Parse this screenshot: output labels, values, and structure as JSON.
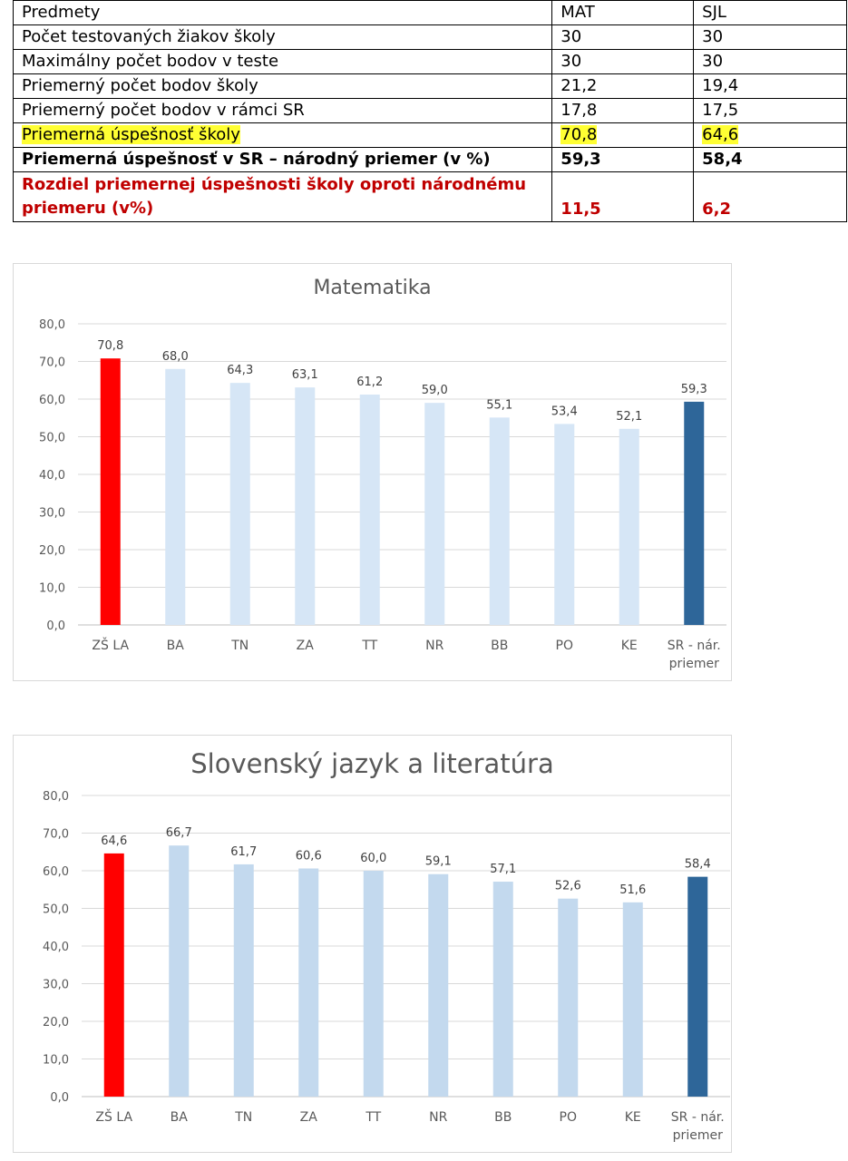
{
  "table": {
    "header": [
      "Predmety",
      "MAT",
      "SJL"
    ],
    "rows": [
      {
        "label": "Počet testovaných žiakov školy",
        "mat": "30",
        "sjl": "30"
      },
      {
        "label": "Maximálny počet bodov v teste",
        "mat": "30",
        "sjl": "30"
      },
      {
        "label": "Priemerný počet bodov školy",
        "mat": "21,2",
        "sjl": "19,4"
      },
      {
        "label": "Priemerný počet bodov v rámci SR",
        "mat": "17,8",
        "sjl": "17,5"
      },
      {
        "label": "Priemerná úspešnosť školy",
        "mat": "70,8",
        "sjl": "64,6"
      },
      {
        "label": "Priemerná úspešnosť v SR – národný priemer (v %)",
        "mat": "59,3",
        "sjl": "58,4"
      },
      {
        "label": "Rozdiel priemernej úspešnosti školy oproti národnému priemeru (v%)",
        "mat": "11,5",
        "sjl": "6,2"
      }
    ],
    "highlight_color": "#ffff33",
    "diff_color": "#c00000"
  },
  "chart_data": [
    {
      "type": "bar",
      "title": "Matematika",
      "categories": [
        "ZŠ LA",
        "BA",
        "TN",
        "ZA",
        "TT",
        "NR",
        "BB",
        "PO",
        "KE",
        "SR - nár. priemer"
      ],
      "values": [
        70.8,
        68.0,
        64.3,
        63.1,
        61.2,
        59.0,
        55.1,
        53.4,
        52.1,
        59.3
      ],
      "value_labels": [
        "70,8",
        "68,0",
        "64,3",
        "63,1",
        "61,2",
        "59,0",
        "55,1",
        "53,4",
        "52,1",
        "59,3"
      ],
      "colors": [
        "#ff0000",
        "#d6e6f6",
        "#d6e6f6",
        "#d6e6f6",
        "#d6e6f6",
        "#d6e6f6",
        "#d6e6f6",
        "#d6e6f6",
        "#d6e6f6",
        "#2e6699"
      ],
      "ylim": [
        0,
        80
      ],
      "yticks": [
        "0,0",
        "10,0",
        "20,0",
        "30,0",
        "40,0",
        "50,0",
        "60,0",
        "70,0",
        "80,0"
      ],
      "grid": true,
      "xlabel": "",
      "ylabel": ""
    },
    {
      "type": "bar",
      "title": "Slovenský jazyk a literatúra",
      "categories": [
        "ZŠ LA",
        "BA",
        "TN",
        "ZA",
        "TT",
        "NR",
        "BB",
        "PO",
        "KE",
        "SR - nár. priemer"
      ],
      "values": [
        64.6,
        66.7,
        61.7,
        60.6,
        60.0,
        59.1,
        57.1,
        52.6,
        51.6,
        58.4
      ],
      "value_labels": [
        "64,6",
        "66,7",
        "61,7",
        "60,6",
        "60,0",
        "59,1",
        "57,1",
        "52,6",
        "51,6",
        "58,4"
      ],
      "colors": [
        "#ff0000",
        "#c3d9ee",
        "#c3d9ee",
        "#c3d9ee",
        "#c3d9ee",
        "#c3d9ee",
        "#c3d9ee",
        "#c3d9ee",
        "#c3d9ee",
        "#2e6699"
      ],
      "ylim": [
        0,
        80
      ],
      "yticks": [
        "0,0",
        "10,0",
        "20,0",
        "30,0",
        "40,0",
        "50,0",
        "60,0",
        "70,0",
        "80,0"
      ],
      "grid": true,
      "xlabel": "",
      "ylabel": ""
    }
  ]
}
